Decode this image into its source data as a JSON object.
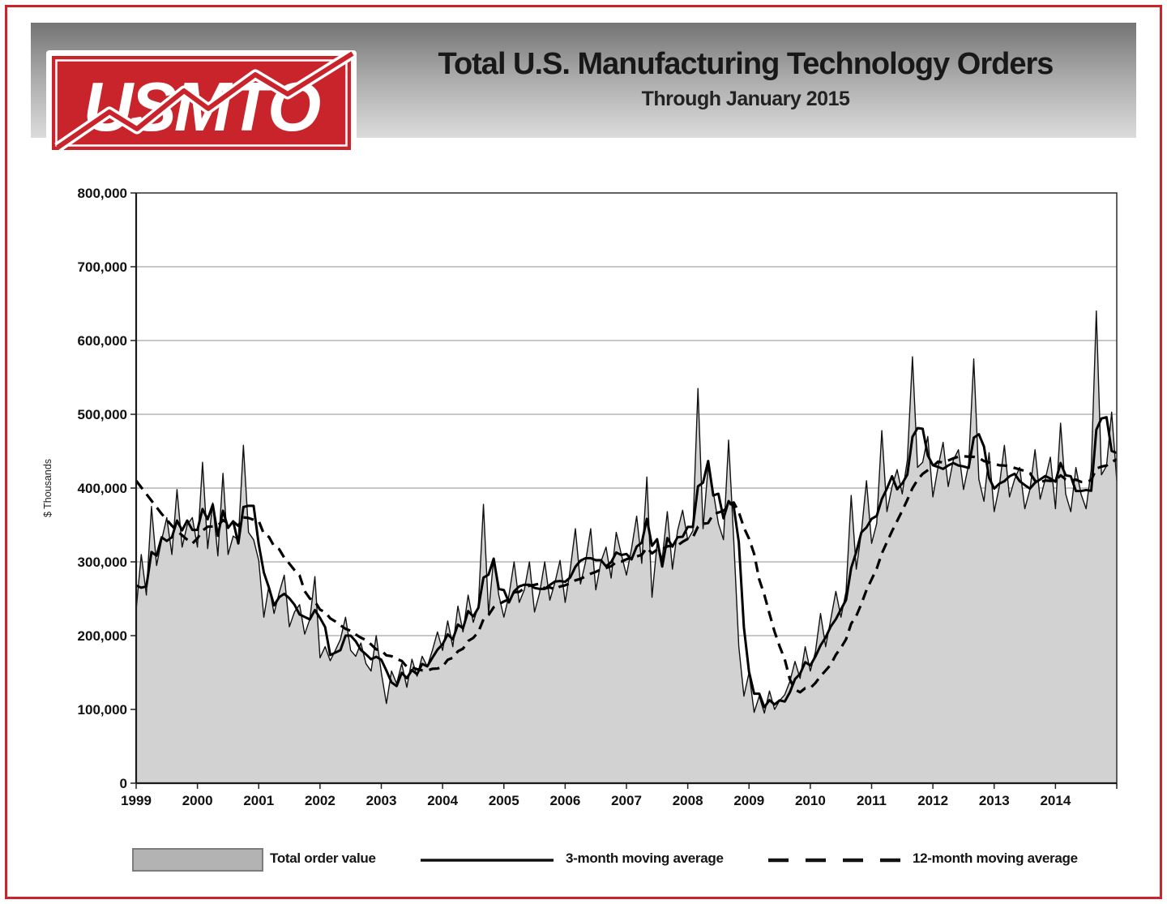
{
  "header": {
    "logo_text": "USMTO",
    "title": "Total U.S. Manufacturing Technology Orders",
    "subtitle": "Through January 2015"
  },
  "colors": {
    "brand_red": "#c9242b",
    "area_fill": "#d2d2d2",
    "line_black": "#111111",
    "gridline": "#8f8f8f",
    "plot_border": "#3a3a3a"
  },
  "chart_data": {
    "type": "area",
    "title": "Total U.S. Manufacturing Technology Orders",
    "subtitle": "Through January 2015",
    "ylabel": "$ Thousands",
    "ylim": [
      0,
      800000
    ],
    "ytick_step": 100000,
    "grid": true,
    "legend_position": "bottom",
    "x_unit": "month",
    "x_start": "1999-01",
    "x_end": "2015-01",
    "x_year_labels": [
      "1999",
      "2000",
      "2001",
      "2002",
      "2003",
      "2004",
      "2005",
      "2006",
      "2007",
      "2008",
      "2009",
      "2010",
      "2011",
      "2012",
      "2013",
      "2014"
    ],
    "series": [
      {
        "name": "Total order value",
        "type": "area",
        "values": [
          235000,
          310000,
          255000,
          375000,
          295000,
          330000,
          360000,
          310000,
          398000,
          320000,
          350000,
          360000,
          320000,
          435000,
          318000,
          380000,
          308000,
          420000,
          310000,
          335000,
          330000,
          458000,
          340000,
          330000,
          302000,
          225000,
          268000,
          230000,
          258000,
          282000,
          212000,
          232000,
          242000,
          202000,
          222000,
          280000,
          170000,
          185000,
          166000,
          180000,
          195000,
          225000,
          180000,
          172000,
          190000,
          162000,
          152000,
          200000,
          150000,
          108000,
          152000,
          135000,
          162000,
          130000,
          168000,
          145000,
          172000,
          158000,
          180000,
          205000,
          180000,
          220000,
          185000,
          240000,
          205000,
          255000,
          218000,
          240000,
          378000,
          230000,
          305000,
          255000,
          225000,
          255000,
          300000,
          245000,
          262000,
          300000,
          232000,
          258000,
          300000,
          248000,
          272000,
          302000,
          245000,
          290000,
          345000,
          270000,
          300000,
          345000,
          262000,
          300000,
          320000,
          278000,
          340000,
          310000,
          282000,
          318000,
          362000,
          298000,
          415000,
          252000,
          325000,
          304000,
          368000,
          290000,
          342000,
          370000,
          330000,
          342000,
          535000,
          345000,
          430000,
          395000,
          352000,
          330000,
          465000,
          330000,
          185000,
          118000,
          150000,
          96000,
          118000,
          95000,
          125000,
          100000,
          112000,
          120000,
          138000,
          165000,
          142000,
          185000,
          152000,
          178000,
          230000,
          185000,
          222000,
          260000,
          225000,
          260000,
          390000,
          290000,
          340000,
          410000,
          325000,
          352000,
          478000,
          368000,
          402000,
          425000,
          392000,
          438000,
          578000,
          428000,
          435000,
          470000,
          388000,
          428000,
          462000,
          402000,
          438000,
          452000,
          398000,
          432000,
          575000,
          412000,
          382000,
          448000,
          368000,
          402000,
          458000,
          388000,
          412000,
          428000,
          372000,
          398000,
          452000,
          385000,
          412000,
          442000,
          372000,
          488000,
          392000,
          368000,
          428000,
          392000,
          372000,
          425000,
          640000,
          418000,
          430000,
          503000,
          410000
        ]
      },
      {
        "name": "3-month moving average",
        "type": "line",
        "derived_from": "Total order value",
        "window": 3,
        "initial_values": [
          268000,
          265000
        ]
      },
      {
        "name": "12-month moving average",
        "type": "dashed-line",
        "derived_from": "Total order value",
        "window": 12,
        "initial_values": [
          410000,
          401000,
          392000,
          383000,
          374000,
          365000,
          357000,
          349000,
          342000,
          336000,
          330000
        ]
      }
    ]
  }
}
